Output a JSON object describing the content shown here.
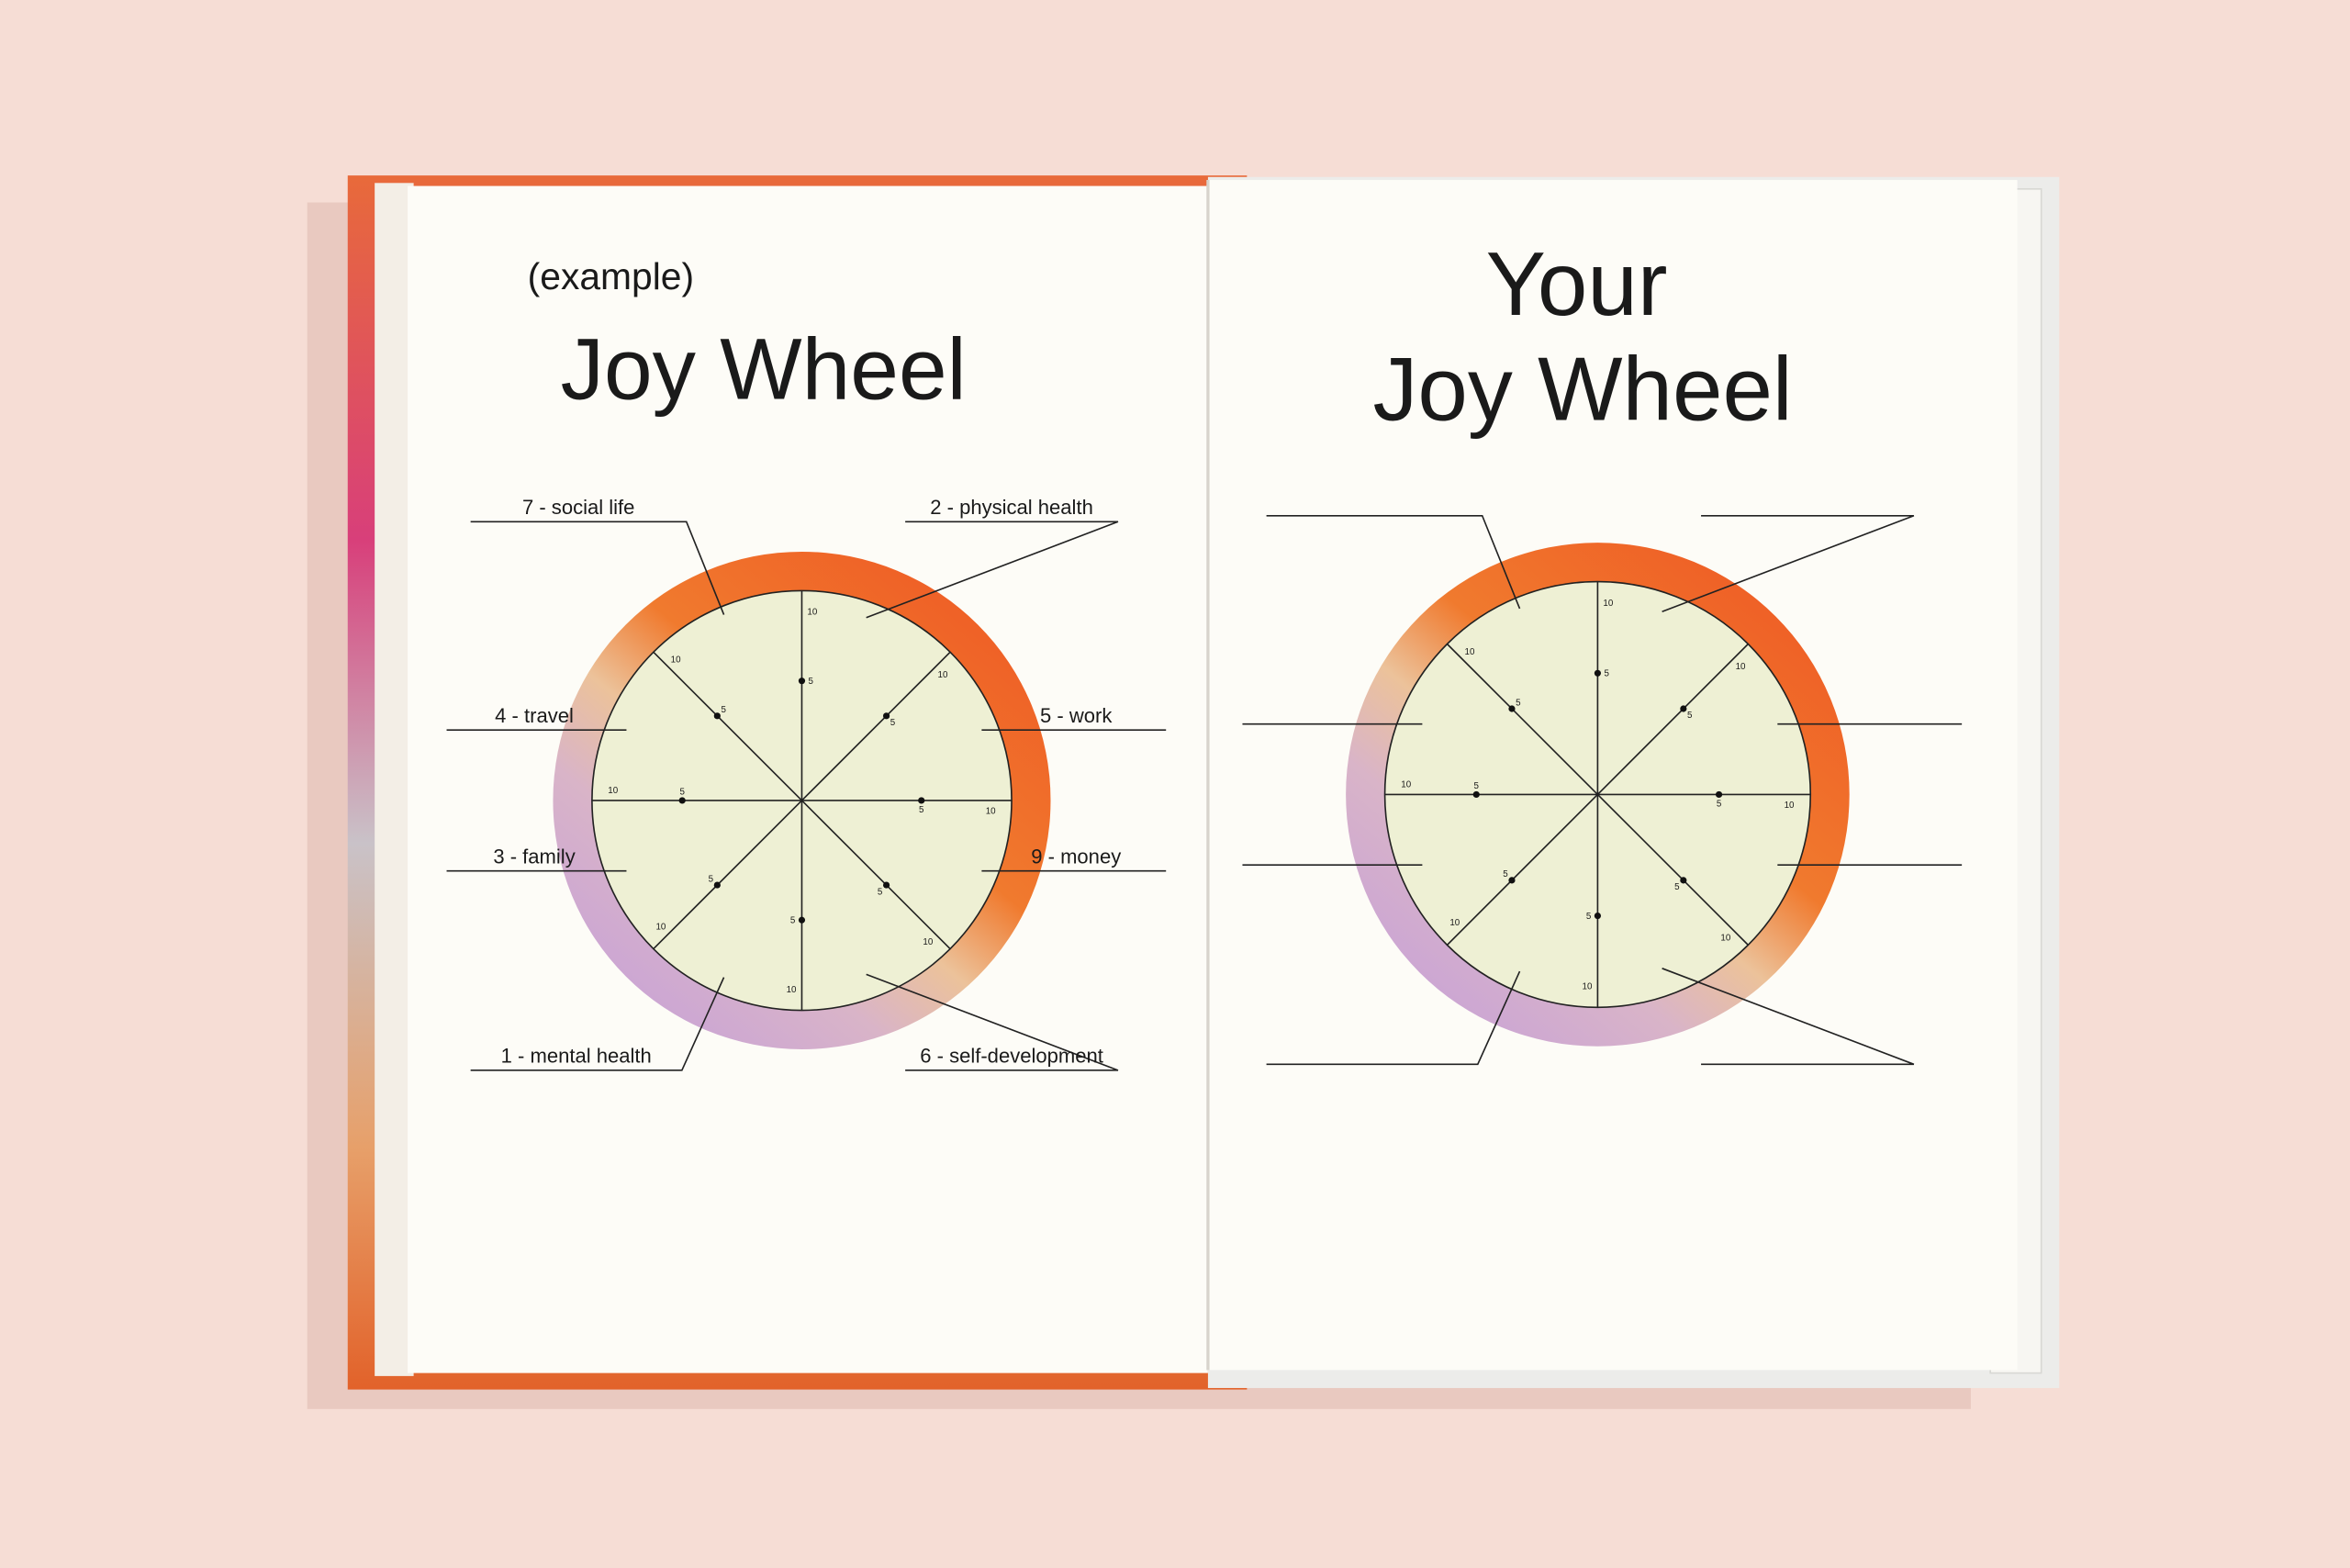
{
  "left_page": {
    "subtitle": "(example)",
    "title": "Joy Wheel",
    "labels": [
      "7 - social life",
      "2 - physical health",
      "4 - travel",
      "5 - work",
      "3 - family",
      "9 - money",
      "1 - mental health",
      "6 - self-development"
    ]
  },
  "right_page": {
    "title_lines": [
      "Your",
      "Joy Wheel"
    ]
  },
  "scale_labels": [
    "5",
    "10"
  ]
}
